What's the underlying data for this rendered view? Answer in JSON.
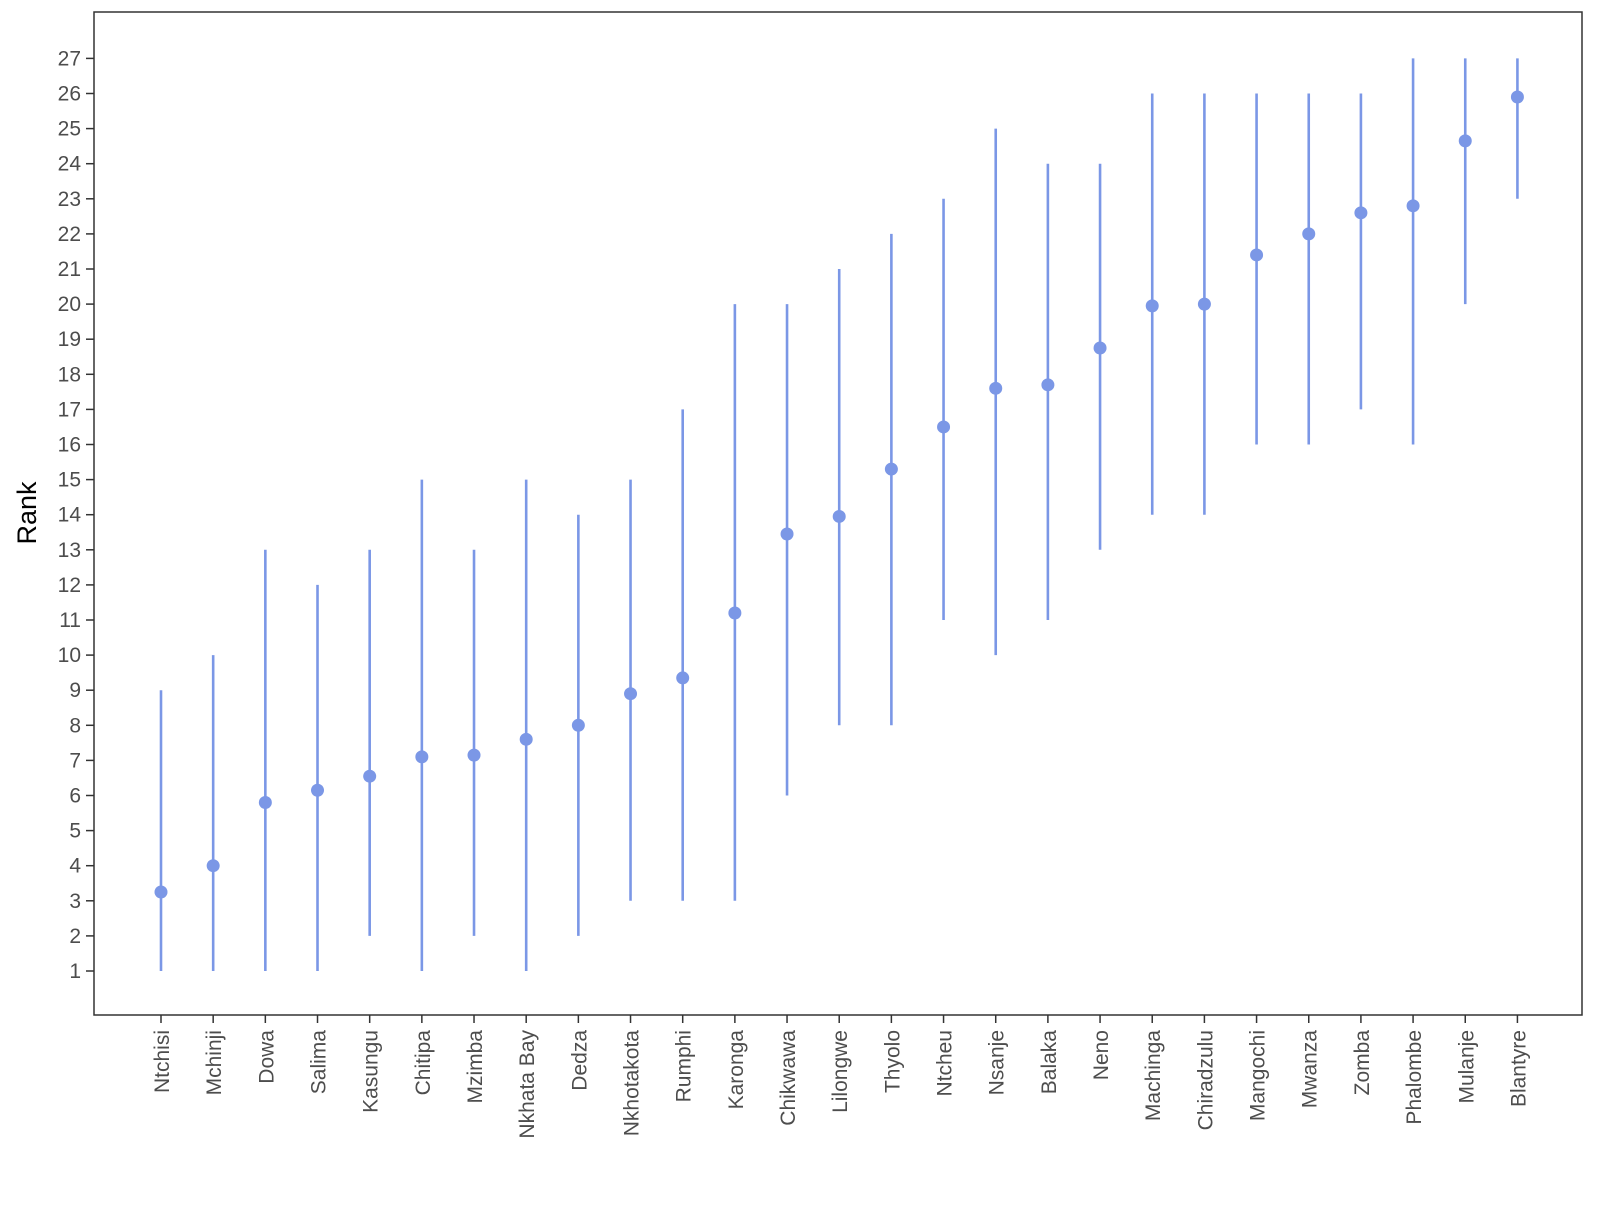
{
  "chart_data": {
    "type": "scatter",
    "subtype": "point-range",
    "title": "",
    "xlabel": "",
    "ylabel": "Rank",
    "ylim": [
      0,
      28
    ],
    "yticks": [
      1,
      2,
      3,
      4,
      5,
      6,
      7,
      8,
      9,
      10,
      11,
      12,
      13,
      14,
      15,
      16,
      17,
      18,
      19,
      20,
      21,
      22,
      23,
      24,
      25,
      26,
      27
    ],
    "grid": false,
    "legend": "none",
    "color": "#7b97e6",
    "categories": [
      "Ntchisi",
      "Mchinji",
      "Dowa",
      "Salima",
      "Kasungu",
      "Chitipa",
      "Mzimba",
      "Nkhata Bay",
      "Dedza",
      "Nkhotakota",
      "Rumphi",
      "Karonga",
      "Chikwawa",
      "Lilongwe",
      "Thyolo",
      "Ntcheu",
      "Nsanje",
      "Balaka",
      "Neno",
      "Machinga",
      "Chiradzulu",
      "Mangochi",
      "Mwanza",
      "Zomba",
      "Phalombe",
      "Mulanje",
      "Blantyre"
    ],
    "values": [
      3.25,
      4.0,
      5.8,
      6.15,
      6.55,
      7.1,
      7.15,
      7.6,
      8.0,
      8.9,
      9.35,
      11.2,
      13.45,
      13.95,
      15.3,
      16.5,
      17.6,
      17.7,
      18.75,
      19.95,
      20.0,
      21.4,
      22.0,
      22.6,
      22.8,
      24.65,
      25.9
    ],
    "lower": [
      1,
      1,
      1,
      1,
      2,
      1,
      2,
      1,
      2,
      3,
      3,
      3,
      6,
      8,
      8,
      11,
      10,
      11,
      13,
      14,
      14,
      16,
      16,
      17,
      16,
      20,
      23
    ],
    "upper": [
      9,
      10,
      13,
      12,
      13,
      15,
      13,
      15,
      14,
      15,
      17,
      20,
      20,
      21,
      22,
      23,
      25,
      24,
      24,
      26,
      26,
      26,
      26,
      26,
      27,
      27,
      27
    ]
  }
}
